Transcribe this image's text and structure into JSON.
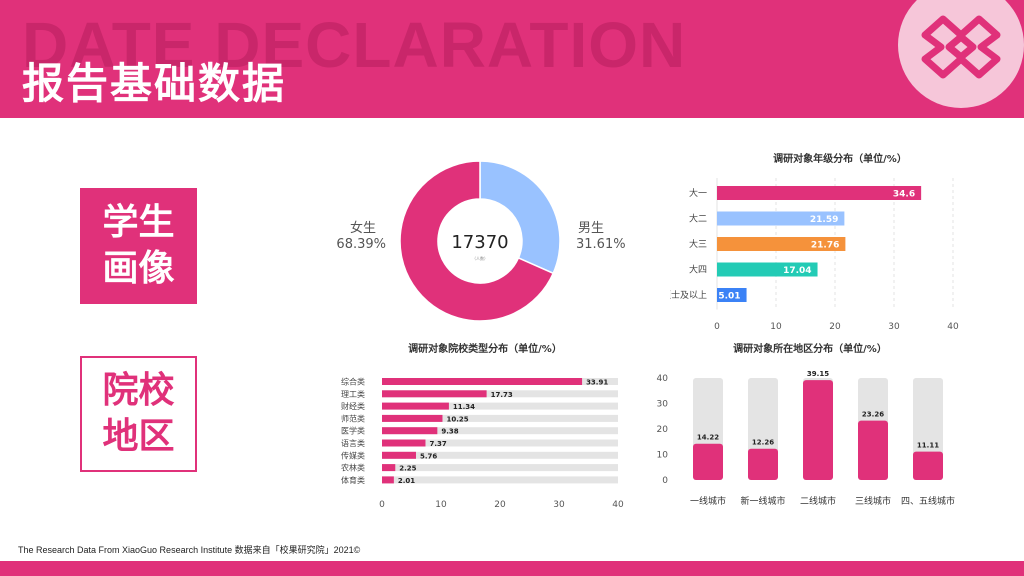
{
  "header": {
    "bg_text": "DATE DECLARATION",
    "title": "报告基础数据",
    "color": "#e0317a"
  },
  "sections": {
    "student_profile": "学生\n画像",
    "school_region": "院校\n地区"
  },
  "footer": {
    "source": "The Research Data From XiaoGuo Research Institute 数据来自「校果研究院」2021©"
  },
  "chart_data": [
    {
      "type": "pie",
      "variant": "donut",
      "center_value": "17370",
      "center_unit": "（人数）",
      "slices": [
        {
          "label": "男生",
          "value": 31.61,
          "display": "31.61%",
          "color": "#99c2ff"
        },
        {
          "label": "女生",
          "value": 68.39,
          "display": "68.39%",
          "color": "#e0317a"
        }
      ]
    },
    {
      "type": "bar",
      "orientation": "horizontal",
      "title": "调研对象年级分布（单位/%）",
      "categories": [
        "大一",
        "大二",
        "大三",
        "大四",
        "硕士及以上"
      ],
      "values": [
        34.6,
        21.59,
        21.76,
        17.04,
        5.01
      ],
      "labels": [
        "34.6",
        "21.59",
        "21.76",
        "17.04",
        "5.01"
      ],
      "colors": [
        "#e0317a",
        "#99c2ff",
        "#f5923b",
        "#23cbb5",
        "#3b82f6"
      ],
      "xlim": [
        0,
        40
      ],
      "xticks": [
        "0",
        "10",
        "20",
        "30",
        "40"
      ],
      "grid": true
    },
    {
      "type": "bar",
      "orientation": "horizontal",
      "title": "调研对象院校类型分布（单位/%）",
      "categories": [
        "综合类",
        "理工类",
        "财经类",
        "师范类",
        "医学类",
        "语言类",
        "传媒类",
        "农林类",
        "体育类"
      ],
      "values": [
        33.91,
        17.73,
        11.34,
        10.25,
        9.38,
        7.37,
        5.76,
        2.25,
        2.01
      ],
      "labels": [
        "33.91",
        "17.73",
        "11.34",
        "10.25",
        "9.38",
        "7.37",
        "5.76",
        "2.25",
        "2.01"
      ],
      "color": "#e0317a",
      "track_color": "#e4e4e4",
      "xlim": [
        0,
        40
      ],
      "xticks": [
        "0",
        "10",
        "20",
        "30",
        "40"
      ]
    },
    {
      "type": "bar",
      "orientation": "vertical",
      "title": "调研对象所在地区分布（单位/%）",
      "categories": [
        "一线城市",
        "新一线城市",
        "二线城市",
        "三线城市",
        "四、五线城市"
      ],
      "values": [
        14.22,
        12.26,
        39.15,
        23.26,
        11.11
      ],
      "labels": [
        "14.22",
        "12.26",
        "39.15",
        "23.26",
        "11.11"
      ],
      "color": "#e0317a",
      "track_color": "#e4e4e4",
      "ylim": [
        0,
        40
      ],
      "yticks": [
        "0",
        "10",
        "20",
        "30",
        "40"
      ]
    }
  ]
}
